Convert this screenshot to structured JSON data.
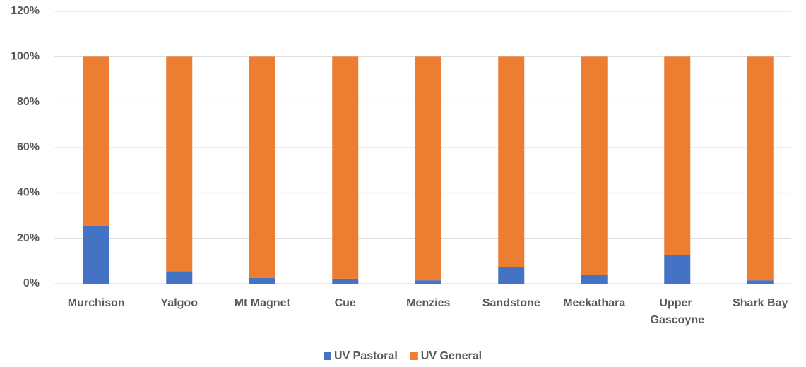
{
  "chart_data": {
    "type": "stacked_bar",
    "categories": [
      "Murchison",
      "Yalgoo",
      "Mt Magnet",
      "Cue",
      "Menzies",
      "Sandstone",
      "Meekathara",
      "Upper Gascoyne",
      "Shark Bay"
    ],
    "series": [
      {
        "name": "UV Pastoral",
        "color": "#4472c4",
        "values": [
          25.5,
          5.5,
          2.5,
          2.2,
          1.5,
          7.3,
          3.8,
          12.5,
          1.5
        ]
      },
      {
        "name": "UV General",
        "color": "#ed7d31",
        "values": [
          74.5,
          94.5,
          97.5,
          97.8,
          98.5,
          92.7,
          96.2,
          87.5,
          98.5
        ]
      }
    ],
    "ylim": [
      0,
      120
    ],
    "yticks": [
      {
        "value": 0,
        "label": "0%"
      },
      {
        "value": 20,
        "label": "20%"
      },
      {
        "value": 40,
        "label": "40%"
      },
      {
        "value": 60,
        "label": "60%"
      },
      {
        "value": 80,
        "label": "80%"
      },
      {
        "value": 100,
        "label": "100%"
      },
      {
        "value": 120,
        "label": "120%"
      }
    ],
    "grid": true,
    "legend": "bottom"
  }
}
